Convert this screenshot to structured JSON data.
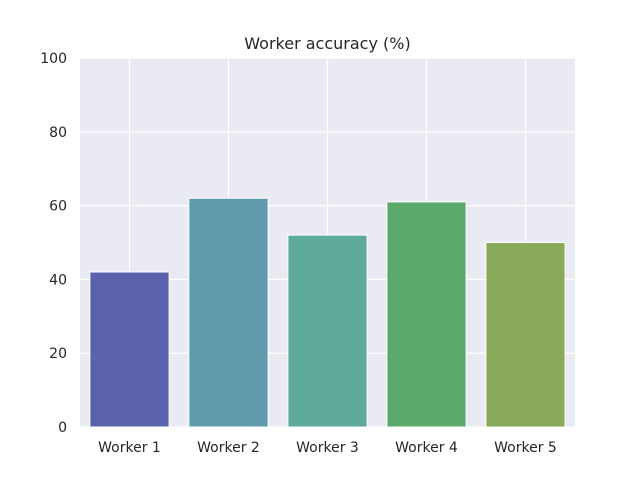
{
  "chart_data": {
    "type": "bar",
    "title": "Worker accuracy (%)",
    "xlabel": "",
    "ylabel": "",
    "categories": [
      "Worker 1",
      "Worker 2",
      "Worker 3",
      "Worker 4",
      "Worker 5"
    ],
    "values": [
      42,
      62,
      52,
      61,
      50
    ],
    "ylim": [
      0,
      100
    ],
    "yticks": [
      0,
      20,
      40,
      60,
      80,
      100
    ],
    "bar_colors": [
      "#5b62ad",
      "#5e99ac",
      "#5dab98",
      "#5ca96c",
      "#89aa5a"
    ],
    "grid": true,
    "legend": "none",
    "background": "#eaeaf2"
  }
}
